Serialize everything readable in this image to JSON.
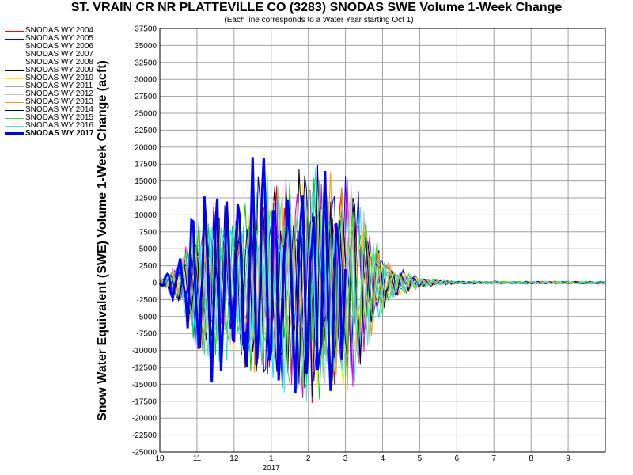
{
  "chart_data": {
    "type": "line",
    "title": "ST. VRAIN CR NR PLATTEVILLE CO (3283) SNODAS SWE Volume 1-Week Change",
    "subtitle": "(Each line corresponds to a Water Year starting Oct 1)",
    "ylabel": "Snow Water Equivalent (SWE) Volume 1-Week Change (acft)",
    "xlabel": "",
    "x_ticks": [
      "10",
      "11",
      "12",
      "1",
      "2",
      "3",
      "4",
      "5",
      "6",
      "7",
      "8",
      "9"
    ],
    "x_year_label": "2017",
    "ylim": [
      -25000,
      37500
    ],
    "y_ticks": [
      37500,
      35000,
      32500,
      30000,
      27500,
      25000,
      22500,
      20000,
      17500,
      15000,
      12500,
      10000,
      7500,
      5000,
      2500,
      0,
      -2500,
      -5000,
      -7500,
      -10000,
      -12500,
      -15000,
      -17500,
      -20000,
      -22500,
      -25000
    ],
    "grid": true,
    "legend_position": "left",
    "series": [
      {
        "name": "SNODAS WY 2004",
        "color": "#ff0000"
      },
      {
        "name": "SNODAS WY 2005",
        "color": "#0000ff"
      },
      {
        "name": "SNODAS WY 2006",
        "color": "#00cc00"
      },
      {
        "name": "SNODAS WY 2007",
        "color": "#00e0e0"
      },
      {
        "name": "SNODAS WY 2008",
        "color": "#e000e0"
      },
      {
        "name": "SNODAS WY 2009",
        "color": "#000000"
      },
      {
        "name": "SNODAS WY 2010",
        "color": "#ffee00"
      },
      {
        "name": "SNODAS WY 2011",
        "color": "#aaaaaa"
      },
      {
        "name": "SNODAS WY 2012",
        "color": "#c0c0c0"
      },
      {
        "name": "SNODAS WY 2013",
        "color": "#ff9900"
      },
      {
        "name": "SNODAS WY 2014",
        "color": "#000080"
      },
      {
        "name": "SNODAS WY 2015",
        "color": "#33dd33"
      },
      {
        "name": "SNODAS WY 2016",
        "color": "#33eeee"
      },
      {
        "name": "SNODAS WY 2017",
        "color": "#0000ff",
        "highlight": true
      }
    ]
  }
}
